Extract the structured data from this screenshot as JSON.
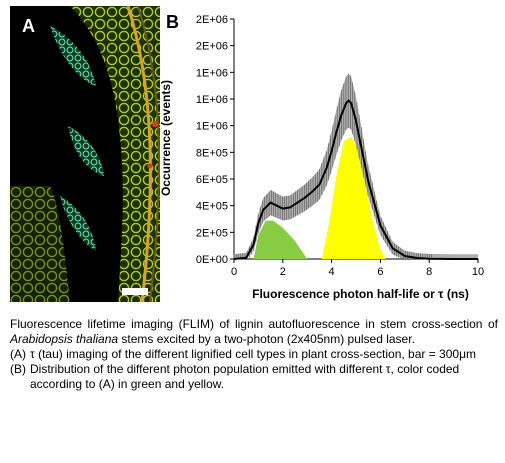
{
  "panel_a": {
    "letter": "A"
  },
  "panel_b": {
    "letter": "B"
  },
  "chart_data": {
    "type": "line",
    "title": "",
    "xlabel": "Fluorescence photon half-life or τ (ns)",
    "ylabel": "Occurrence (events)",
    "xlim": [
      0,
      10
    ],
    "ylim": [
      0,
      2000000
    ],
    "xticks": [
      "0",
      "2",
      "4",
      "6",
      "8",
      "10"
    ],
    "yticks": [
      "0E+00",
      "2E+05",
      "4E+05",
      "6E+05",
      "8E+05",
      "1E+06",
      "1E+06",
      "1E+06",
      "2E+06",
      "2E+06"
    ],
    "grid": false,
    "series": [
      {
        "x": [
          0,
          0.5,
          0.8,
          1.0,
          1.2,
          1.5,
          1.8,
          2.0,
          2.3,
          2.6,
          2.9,
          3.2,
          3.5,
          3.8,
          4.0,
          4.2,
          4.4,
          4.6,
          4.7,
          4.8,
          5.0,
          5.2,
          5.5,
          6.0,
          6.5,
          7.0,
          7.5,
          8.0,
          9.0,
          10.0
        ],
        "y": [
          0,
          10000,
          120000,
          300000,
          410000,
          470000,
          440000,
          420000,
          430000,
          470000,
          510000,
          560000,
          620000,
          760000,
          900000,
          1060000,
          1200000,
          1300000,
          1320000,
          1300000,
          1150000,
          950000,
          650000,
          280000,
          90000,
          25000,
          8000,
          2000,
          0,
          0
        ],
        "error_bars": "symmetric",
        "color": "#000000"
      }
    ],
    "filled_regions": [
      {
        "color": "#88cc44",
        "x": [
          0.8,
          1.0,
          1.3,
          1.6,
          2.0,
          2.5,
          3.0
        ],
        "y": [
          0,
          200000,
          320000,
          320000,
          260000,
          150000,
          0
        ]
      },
      {
        "color": "#ffff00",
        "x": [
          3.6,
          3.9,
          4.2,
          4.5,
          4.8,
          5.1,
          5.4,
          5.7,
          6.0,
          6.2
        ],
        "y": [
          0,
          300000,
          700000,
          980000,
          1020000,
          900000,
          600000,
          300000,
          80000,
          0
        ]
      }
    ]
  },
  "caption": {
    "paragraph": "Fluorescence lifetime imaging (FLIM) of lignin autofluorescence in stem cross-section of Arabidopsis thaliana stems excited by a two-photon (2x405nm) pulsed laser.",
    "items": [
      {
        "marker": "(A)",
        "text": "τ (tau) imaging of the different lignified cell types in plant cross-section, bar = 300μm"
      },
      {
        "marker": "(B)",
        "text": "Distribution of the different photon population emitted with different τ, color coded according to (A) in green and yellow."
      }
    ]
  }
}
